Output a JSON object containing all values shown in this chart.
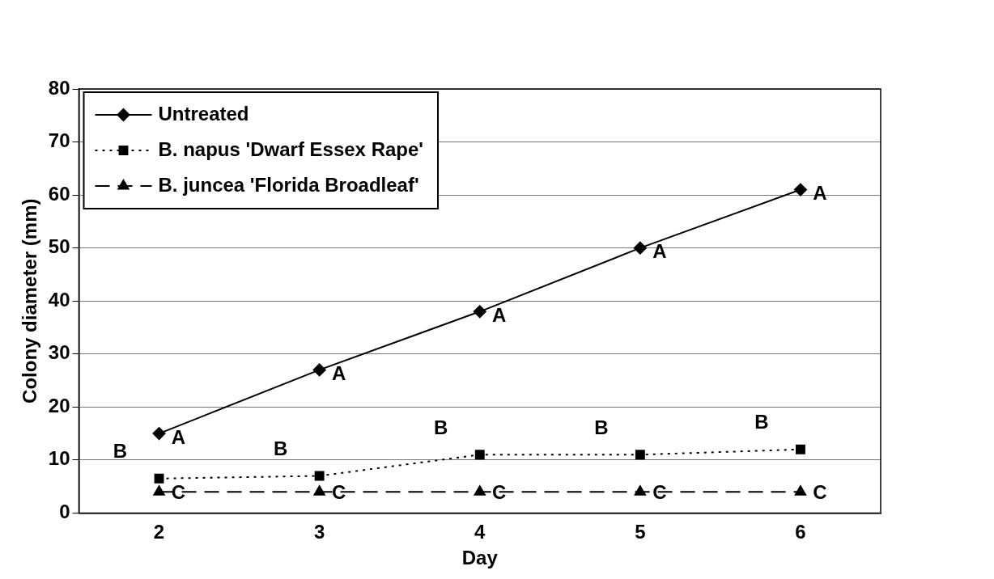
{
  "chart_data": {
    "type": "line",
    "xlabel": "Day",
    "ylabel": "Colony diameter (mm)",
    "categories": [
      "2",
      "3",
      "4",
      "5",
      "6"
    ],
    "series": [
      {
        "name": "Untreated",
        "color": "#000000",
        "marker": "diamond",
        "line_style": "solid",
        "values": [
          15,
          27,
          38,
          50,
          61
        ]
      },
      {
        "name": "B. napus 'Dwarf Essex Rape'",
        "color": "#000000",
        "marker": "square",
        "line_style": "dotted",
        "values": [
          6.5,
          7,
          11,
          11,
          12
        ]
      },
      {
        "name": "B. juncea 'Florida Broadleaf'",
        "color": "#000000",
        "marker": "triangle",
        "line_style": "dashed",
        "values": [
          4,
          4,
          4,
          4,
          4
        ]
      }
    ],
    "ylim": [
      0,
      80
    ],
    "yticks": [
      0,
      10,
      20,
      30,
      40,
      50,
      60,
      70,
      80
    ],
    "grid": "y",
    "legend": "top left",
    "annotations": [
      {
        "text": "A",
        "x": "2",
        "y": 15
      },
      {
        "text": "A",
        "x": "3",
        "y": 27
      },
      {
        "text": "A",
        "x": "4",
        "y": 38
      },
      {
        "text": "A",
        "x": "5",
        "y": 50
      },
      {
        "text": "A",
        "x": "6",
        "y": 61
      },
      {
        "text": "B",
        "x": "2",
        "y": 6.5
      },
      {
        "text": "B",
        "x": "3",
        "y": 7
      },
      {
        "text": "B",
        "x": "4",
        "y": 11
      },
      {
        "text": "B",
        "x": "5",
        "y": 11
      },
      {
        "text": "B",
        "x": "6",
        "y": 12
      },
      {
        "text": "C",
        "x": "2",
        "y": 4
      },
      {
        "text": "C",
        "x": "3",
        "y": 4
      },
      {
        "text": "C",
        "x": "4",
        "y": 4
      },
      {
        "text": "C",
        "x": "5",
        "y": 4
      },
      {
        "text": "C",
        "x": "6",
        "y": 4
      }
    ]
  }
}
